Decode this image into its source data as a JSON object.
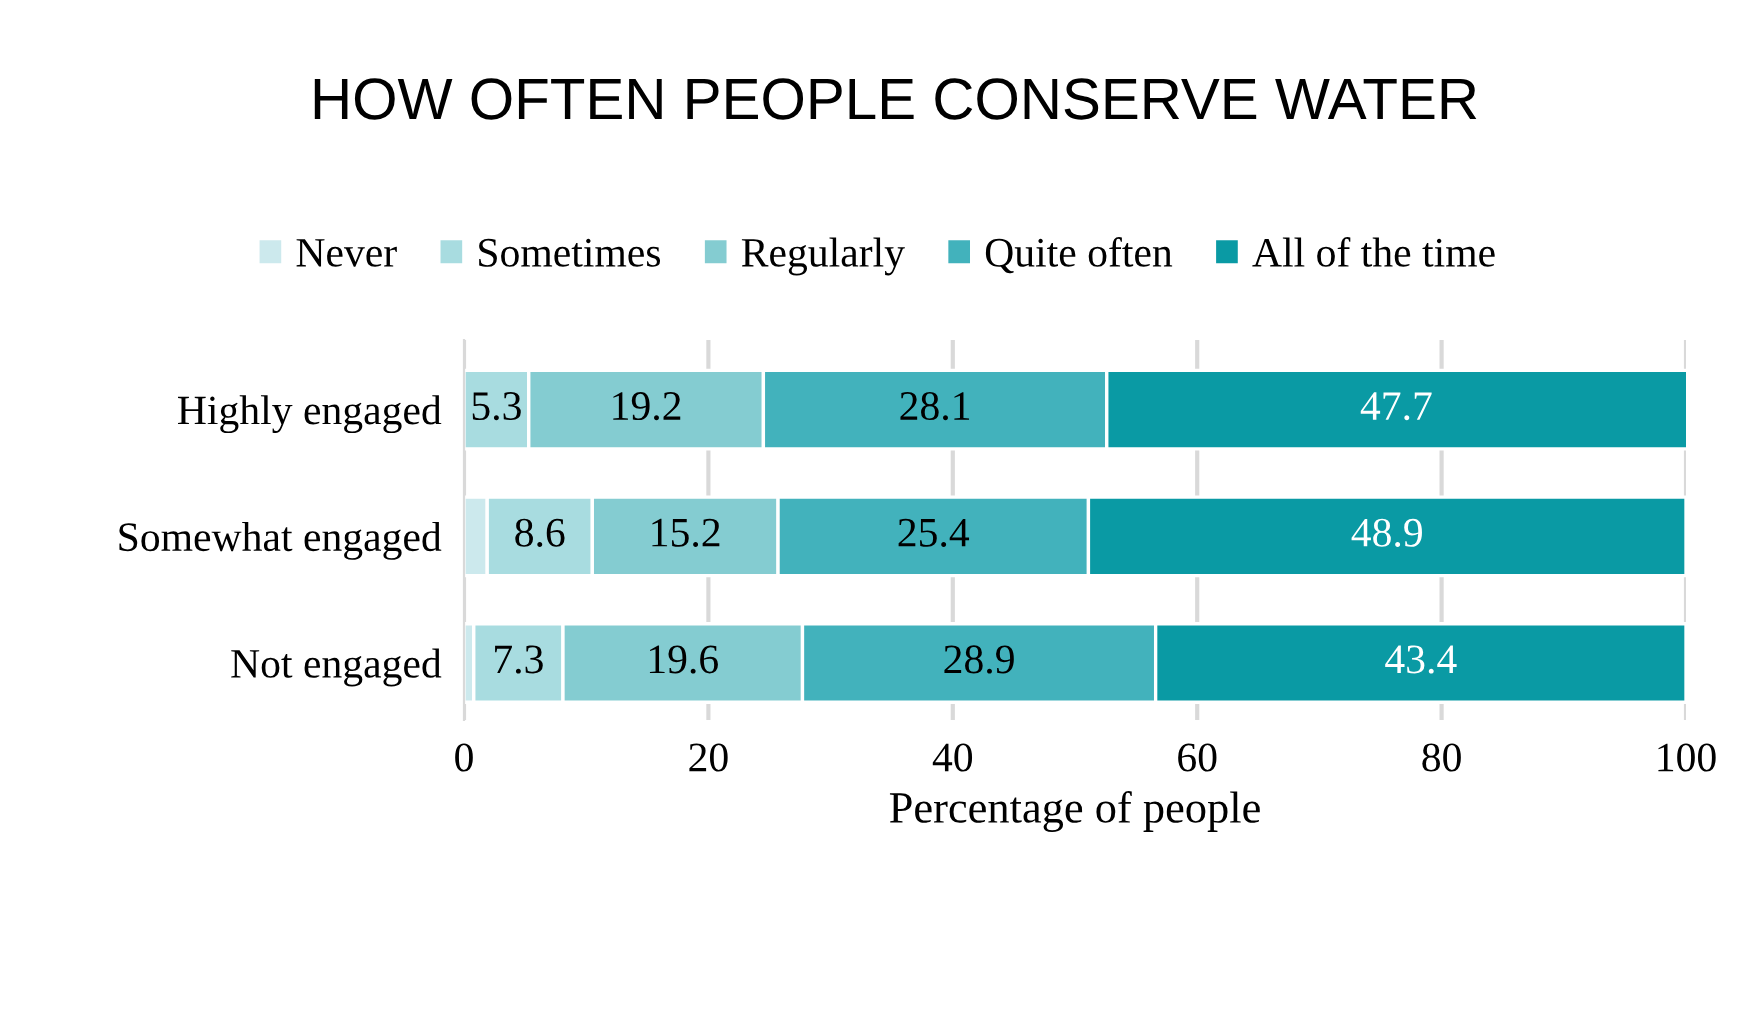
{
  "chart_data": {
    "type": "bar",
    "orientation": "horizontal",
    "stacked": true,
    "title": "HOW OFTEN PEOPLE CONSERVE WATER",
    "xlabel": "Percentage of people",
    "categories": [
      "Highly engaged",
      "Somewhat engaged",
      "Not engaged"
    ],
    "series": [
      {
        "name": "Never",
        "color": "#cce9ed",
        "values": [
          0,
          1.9,
          0.8
        ],
        "value_labels": [
          null,
          null,
          null
        ]
      },
      {
        "name": "Sometimes",
        "color": "#a8dce0",
        "values": [
          5.3,
          8.6,
          7.3
        ],
        "value_labels": [
          "5.3",
          "8.6",
          "7.3"
        ]
      },
      {
        "name": "Regularly",
        "color": "#84ccd1",
        "values": [
          19.2,
          15.2,
          19.6
        ],
        "value_labels": [
          "19.2",
          "15.2",
          "19.6"
        ]
      },
      {
        "name": "Quite often",
        "color": "#42b2bc",
        "values": [
          28.1,
          25.4,
          28.9
        ],
        "value_labels": [
          "28.1",
          "25.4",
          "28.9"
        ]
      },
      {
        "name": "All of the time",
        "color": "#0a9aa4",
        "values": [
          47.7,
          48.9,
          43.4
        ],
        "value_labels": [
          "47.7",
          "48.9",
          "43.4"
        ]
      }
    ],
    "xlim": [
      0,
      100
    ],
    "xticks": [
      0,
      20,
      40,
      60,
      80,
      100
    ],
    "grid": "x",
    "legend": "top"
  }
}
